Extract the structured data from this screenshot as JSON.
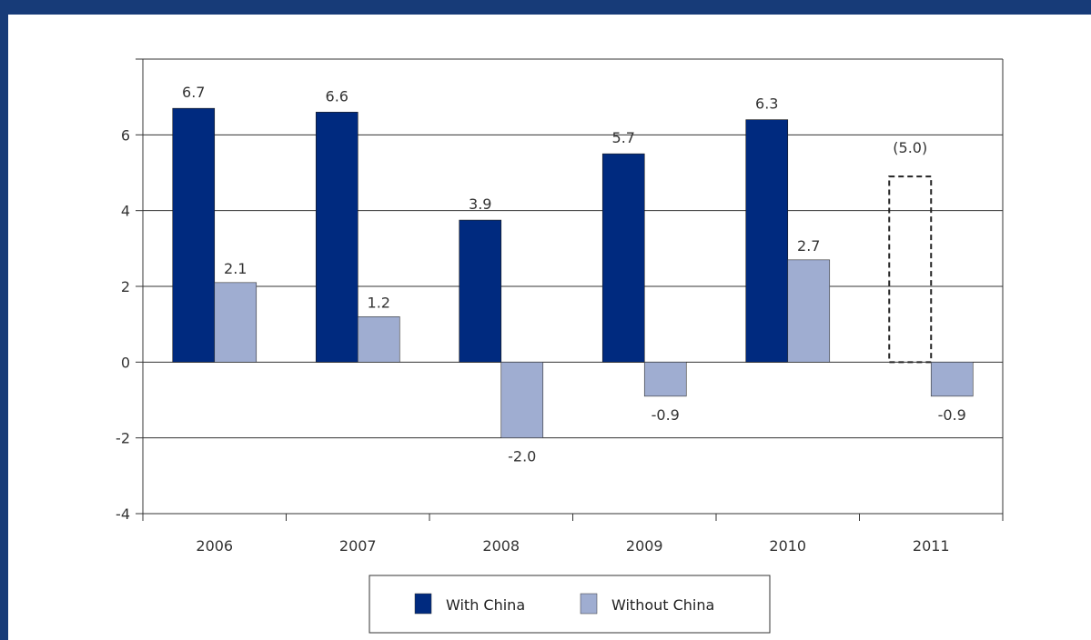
{
  "chart_data": {
    "type": "bar",
    "categories": [
      "2006",
      "2007",
      "2008",
      "2009",
      "2010",
      "2011"
    ],
    "series": [
      {
        "name": "With China",
        "values": [
          6.7,
          6.6,
          3.9,
          5.7,
          6.3,
          5.0
        ],
        "bar_values": [
          6.7,
          6.6,
          3.75,
          5.5,
          6.4,
          4.9
        ],
        "labels": [
          "6.7",
          "6.6",
          "3.9",
          "5.7",
          "6.3",
          "(5.0)"
        ],
        "projected": [
          false,
          false,
          false,
          false,
          false,
          true
        ],
        "color": "#002a7f"
      },
      {
        "name": "Without China",
        "values": [
          2.1,
          1.2,
          -2.0,
          -0.9,
          2.7,
          -0.9
        ],
        "labels": [
          "2.1",
          "1.2",
          "-2.0",
          "-0.9",
          "2.7",
          "-0.9"
        ],
        "color": "#9fadd1"
      }
    ],
    "yticks": [
      "6",
      "4",
      "2",
      "0",
      "-2",
      "-4"
    ],
    "ylim": [
      -4,
      8
    ],
    "grid": true,
    "legend_position": "bottom-center"
  }
}
